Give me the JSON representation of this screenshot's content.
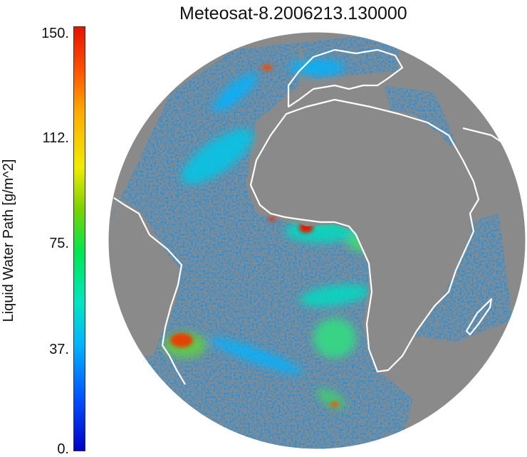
{
  "title": "Meteosat-8.2006213.130000",
  "colorbar": {
    "label": "Liquid Water Path [g/m^2]",
    "ticks": [
      "150.",
      "112.",
      "75.",
      "37.",
      "0."
    ],
    "range": [
      0,
      150
    ],
    "colors": [
      "#0000c8",
      "#00b4ff",
      "#00e650",
      "#f0ec00",
      "#ffaa00",
      "#e61200"
    ]
  },
  "map": {
    "projection": "geostationary full disk",
    "background": "#8a8a8a",
    "coastline_color": "#ffffff"
  }
}
